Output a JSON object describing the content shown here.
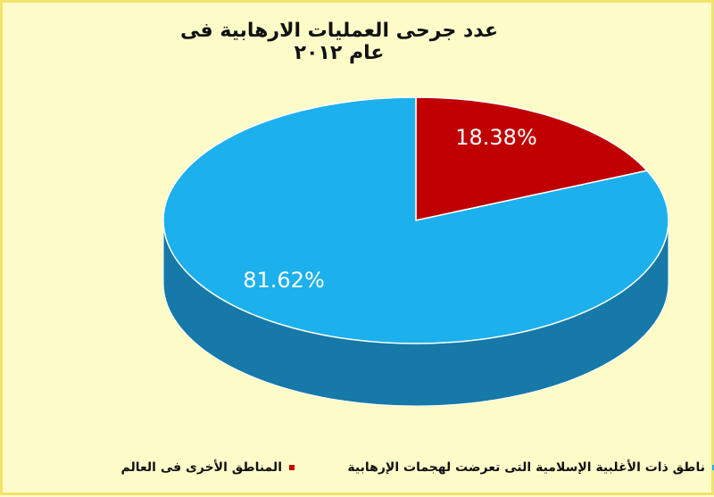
{
  "chart_data": {
    "type": "pie",
    "title": "عدد جرحى العمليات الارهابية فى عام ٢٠١٢",
    "slices": [
      {
        "label": "المناطق الأخرى فى العالم",
        "value": 18.38,
        "data_label": "18.38%",
        "color": "#c00000"
      },
      {
        "label": "ناطق ذات الأغلبية الإسلامية التى تعرضت لهجمات الإرهابية",
        "value": 81.62,
        "data_label": "81.62%",
        "color": "#1cb0ec"
      }
    ],
    "style": "3d",
    "legend_position": "bottom"
  },
  "colors": {
    "background": "#fdfcc9",
    "border": "#f2e36a",
    "blue_side": "#1679a8"
  }
}
